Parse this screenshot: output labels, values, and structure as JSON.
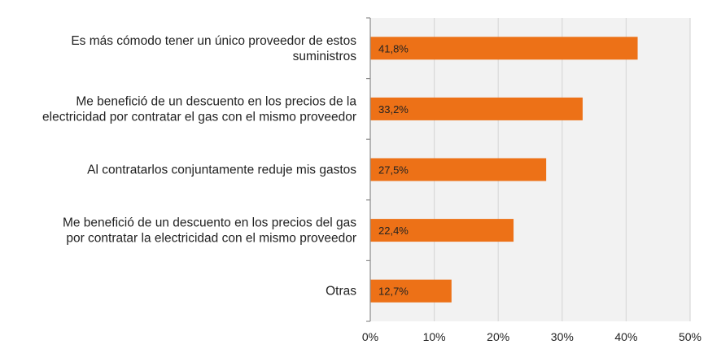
{
  "chart_data": {
    "type": "bar",
    "orientation": "horizontal",
    "categories": [
      [
        "Es más cómodo tener un único proveedor de estos",
        "suministros"
      ],
      [
        "Me benefició de un descuento en los precios de la",
        "electricidad por contratar el gas con el mismo proveedor"
      ],
      [
        "Al contratarlos conjuntamente reduje mis gastos"
      ],
      [
        "Me benefició de un descuento en los precios del gas",
        "por contratar la electricidad con el mismo proveedor"
      ],
      [
        "Otras"
      ]
    ],
    "values": [
      41.8,
      33.2,
      27.5,
      22.4,
      12.7
    ],
    "data_labels": [
      "41,8%",
      "33,2%",
      "27,5%",
      "22,4%",
      "12,7%"
    ],
    "xticks": [
      "0%",
      "10%",
      "20%",
      "30%",
      "40%",
      "50%"
    ],
    "xlim": [
      0,
      50
    ],
    "grid": true,
    "bar_color": "#ED7117",
    "grid_color": "#D9D9D9",
    "plot_bg": "#F2F2F2"
  }
}
